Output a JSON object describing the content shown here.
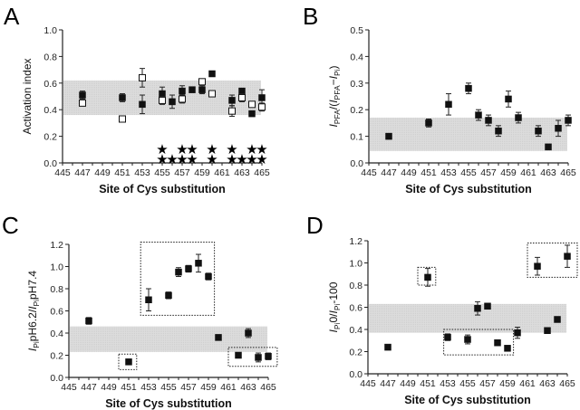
{
  "chart_data": [
    {
      "panel": "A",
      "type": "scatter",
      "title": "",
      "xlabel": "Site of Cys substitution",
      "ylabel": "Activation index",
      "xlim": [
        445,
        465
      ],
      "ylim": [
        0.0,
        1.0
      ],
      "xticks": [
        "445",
        "447",
        "449",
        "451",
        "453",
        "455",
        "457",
        "459",
        "461",
        "463",
        "465"
      ],
      "yticks": [
        "0.0",
        "0.2",
        "0.4",
        "0.6",
        "0.8",
        "1.0"
      ],
      "band": [
        0.36,
        0.62
      ],
      "series": [
        {
          "name": "filled",
          "marker": "filled-square",
          "points": [
            {
              "x": 447,
              "y": 0.51,
              "err": 0.03
            },
            {
              "x": 451,
              "y": 0.49,
              "err": 0.03
            },
            {
              "x": 453,
              "y": 0.44,
              "err": 0.07
            },
            {
              "x": 455,
              "y": 0.52,
              "err": 0.05
            },
            {
              "x": 456,
              "y": 0.46,
              "err": 0.05
            },
            {
              "x": 457,
              "y": 0.54,
              "err": 0.04
            },
            {
              "x": 458,
              "y": 0.55,
              "err": 0.01
            },
            {
              "x": 459,
              "y": 0.55,
              "err": 0.03
            },
            {
              "x": 460,
              "y": 0.67,
              "err": 0.02
            },
            {
              "x": 462,
              "y": 0.47,
              "err": 0.04
            },
            {
              "x": 463,
              "y": 0.54,
              "err": 0.02
            },
            {
              "x": 464,
              "y": 0.37,
              "err": 0.02
            },
            {
              "x": 465,
              "y": 0.49,
              "err": 0.06
            }
          ]
        },
        {
          "name": "open",
          "marker": "open-square",
          "points": [
            {
              "x": 447,
              "y": 0.45,
              "err": 0.0
            },
            {
              "x": 451,
              "y": 0.33,
              "err": 0.0
            },
            {
              "x": 453,
              "y": 0.64,
              "err": 0.07
            },
            {
              "x": 455,
              "y": 0.47,
              "err": 0.03
            },
            {
              "x": 457,
              "y": 0.48,
              "err": 0.03
            },
            {
              "x": 459,
              "y": 0.61,
              "err": 0.02
            },
            {
              "x": 460,
              "y": 0.52,
              "err": 0.02
            },
            {
              "x": 462,
              "y": 0.39,
              "err": 0.04
            },
            {
              "x": 463,
              "y": 0.49,
              "err": 0.03
            },
            {
              "x": 464,
              "y": 0.44,
              "err": 0.0
            },
            {
              "x": 465,
              "y": 0.42,
              "err": 0.03
            }
          ]
        }
      ],
      "annotations": {
        "stars_row1": [
          455,
          457,
          458,
          460,
          462,
          464,
          465
        ],
        "stars_row2": [
          455,
          456,
          457,
          458,
          460,
          462,
          463,
          464,
          465
        ],
        "symbol": "★"
      }
    },
    {
      "panel": "B",
      "type": "scatter",
      "xlabel": "Site of Cys substitution",
      "ylabel": "IPFA/(IPFA−IPi)",
      "ylabel_parts": {
        "i1": "I",
        "s1": "PFA",
        "t1": "/(",
        "i2": "I",
        "s2": "PFA",
        "t2": "−",
        "i3": "I",
        "s3": "Pi",
        "t3": ")"
      },
      "xlim": [
        445,
        465
      ],
      "ylim": [
        0.0,
        0.5
      ],
      "xticks": [
        "445",
        "447",
        "449",
        "451",
        "453",
        "455",
        "457",
        "459",
        "461",
        "463",
        "465"
      ],
      "yticks": [
        "0.0",
        "0.1",
        "0.2",
        "0.3",
        "0.4",
        "0.5"
      ],
      "band": [
        0.045,
        0.17
      ],
      "series": [
        {
          "name": "filled",
          "marker": "filled-square",
          "points": [
            {
              "x": 447,
              "y": 0.1,
              "err": 0.01
            },
            {
              "x": 451,
              "y": 0.15,
              "err": 0.015
            },
            {
              "x": 453,
              "y": 0.22,
              "err": 0.04
            },
            {
              "x": 455,
              "y": 0.28,
              "err": 0.02
            },
            {
              "x": 456,
              "y": 0.18,
              "err": 0.02
            },
            {
              "x": 457,
              "y": 0.16,
              "err": 0.02
            },
            {
              "x": 458,
              "y": 0.12,
              "err": 0.02
            },
            {
              "x": 459,
              "y": 0.24,
              "err": 0.03
            },
            {
              "x": 460,
              "y": 0.17,
              "err": 0.02
            },
            {
              "x": 462,
              "y": 0.12,
              "err": 0.02
            },
            {
              "x": 463,
              "y": 0.06,
              "err": 0.0
            },
            {
              "x": 464,
              "y": 0.13,
              "err": 0.03
            },
            {
              "x": 465,
              "y": 0.16,
              "err": 0.02
            }
          ]
        }
      ]
    },
    {
      "panel": "C",
      "type": "scatter",
      "xlabel": "Site of Cys substitution",
      "ylabel": "IPipH6.2/IPipH7.4",
      "ylabel_parts": {
        "i1": "I",
        "s1": "Pi",
        "t1": "pH6.2/",
        "i2": "I",
        "s2": "Pi",
        "t2": "pH7.4"
      },
      "xlim": [
        445,
        465
      ],
      "ylim": [
        0.0,
        1.2
      ],
      "xticks": [
        "445",
        "447",
        "449",
        "451",
        "453",
        "455",
        "457",
        "459",
        "461",
        "463",
        "465"
      ],
      "yticks": [
        "0.0",
        "0.2",
        "0.4",
        "0.6",
        "0.8",
        "1.0",
        "1.2"
      ],
      "band": [
        0.23,
        0.46
      ],
      "series": [
        {
          "name": "filled",
          "marker": "filled-square",
          "points": [
            {
              "x": 447,
              "y": 0.51,
              "err": 0.03
            },
            {
              "x": 451,
              "y": 0.14,
              "err": 0.0
            },
            {
              "x": 453,
              "y": 0.7,
              "err": 0.1
            },
            {
              "x": 455,
              "y": 0.74,
              "err": 0.03
            },
            {
              "x": 456,
              "y": 0.95,
              "err": 0.04
            },
            {
              "x": 457,
              "y": 0.98,
              "err": 0.03
            },
            {
              "x": 458,
              "y": 1.03,
              "err": 0.08
            },
            {
              "x": 459,
              "y": 0.91,
              "err": 0.03
            },
            {
              "x": 460,
              "y": 0.36,
              "err": 0.0
            },
            {
              "x": 462,
              "y": 0.2,
              "err": 0.0
            },
            {
              "x": 463,
              "y": 0.4,
              "err": 0.04
            },
            {
              "x": 464,
              "y": 0.18,
              "err": 0.04
            },
            {
              "x": 465,
              "y": 0.19,
              "err": 0.03
            }
          ]
        }
      ],
      "boxes": [
        {
          "x": [
            452.2,
            459.6
          ],
          "y": [
            0.56,
            1.22
          ]
        },
        {
          "x": [
            450.0,
            451.8
          ],
          "y": [
            0.07,
            0.21
          ]
        },
        {
          "x": [
            461.0,
            465.9
          ],
          "y": [
            0.1,
            0.27
          ]
        }
      ]
    },
    {
      "panel": "D",
      "type": "scatter",
      "xlabel": "Site of Cys substitution",
      "ylabel": "IPi0/IPi-100",
      "ylabel_parts": {
        "i1": "I",
        "s1": "Pi",
        "t1": "0/",
        "i2": "I",
        "s2": "Pi",
        "t2": "-100"
      },
      "xlim": [
        445,
        465
      ],
      "ylim": [
        0.0,
        1.2
      ],
      "xticks": [
        "445",
        "447",
        "449",
        "451",
        "453",
        "455",
        "457",
        "459",
        "461",
        "463",
        "465"
      ],
      "yticks": [
        "0.0",
        "0.2",
        "0.4",
        "0.6",
        "0.8",
        "1.0",
        "1.2"
      ],
      "band": [
        0.37,
        0.63
      ],
      "series": [
        {
          "name": "filled",
          "marker": "filled-square",
          "points": [
            {
              "x": 447,
              "y": 0.24,
              "err": 0.0
            },
            {
              "x": 451,
              "y": 0.87,
              "err": 0.08
            },
            {
              "x": 453,
              "y": 0.33,
              "err": 0.03
            },
            {
              "x": 455,
              "y": 0.31,
              "err": 0.04
            },
            {
              "x": 456,
              "y": 0.59,
              "err": 0.06
            },
            {
              "x": 457,
              "y": 0.61,
              "err": 0.02
            },
            {
              "x": 458,
              "y": 0.28,
              "err": 0.0
            },
            {
              "x": 459,
              "y": 0.23,
              "err": 0.0
            },
            {
              "x": 460,
              "y": 0.37,
              "err": 0.05
            },
            {
              "x": 462,
              "y": 0.97,
              "err": 0.08
            },
            {
              "x": 463,
              "y": 0.39,
              "err": 0.0
            },
            {
              "x": 464,
              "y": 0.49,
              "err": 0.0
            },
            {
              "x": 465,
              "y": 1.06,
              "err": 0.1
            }
          ]
        }
      ],
      "boxes": [
        {
          "x": [
            450.0,
            451.8
          ],
          "y": [
            0.8,
            0.96
          ]
        },
        {
          "x": [
            452.6,
            459.6
          ],
          "y": [
            0.17,
            0.4
          ]
        },
        {
          "x": [
            461.0,
            466.0
          ],
          "y": [
            0.87,
            1.18
          ]
        }
      ]
    }
  ],
  "panel_letters": [
    "A",
    "B",
    "C",
    "D"
  ]
}
